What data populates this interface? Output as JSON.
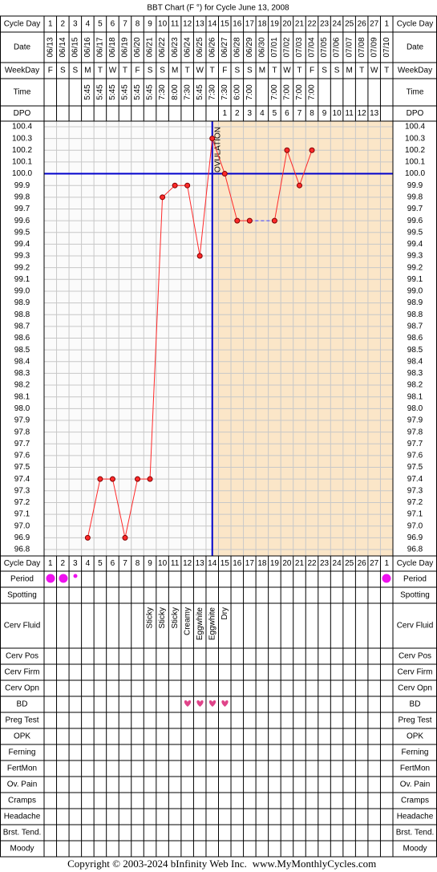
{
  "title": "BBT Chart (F °) for Cycle June 13, 2008",
  "header_labels": {
    "cycle_day": "Cycle Day",
    "date": "Date",
    "weekday": "WeekDay",
    "time": "Time",
    "dpo": "DPO"
  },
  "chart_data": {
    "type": "line",
    "categories": [
      1,
      2,
      3,
      4,
      5,
      6,
      7,
      8,
      9,
      10,
      11,
      12,
      13,
      14,
      15,
      16,
      17,
      18,
      19,
      20,
      21,
      22,
      23,
      24,
      25,
      26,
      27,
      1
    ],
    "dates": [
      "06/13",
      "06/14",
      "06/15",
      "06/16",
      "06/17",
      "06/18",
      "06/19",
      "06/20",
      "06/21",
      "06/22",
      "06/23",
      "06/24",
      "06/25",
      "06/26",
      "06/27",
      "06/28",
      "06/29",
      "06/30",
      "07/01",
      "07/02",
      "07/03",
      "07/04",
      "07/05",
      "07/06",
      "07/07",
      "07/08",
      "07/09",
      "07/10"
    ],
    "weekdays": [
      "F",
      "S",
      "S",
      "M",
      "T",
      "W",
      "T",
      "F",
      "S",
      "S",
      "M",
      "T",
      "W",
      "T",
      "F",
      "S",
      "S",
      "M",
      "T",
      "W",
      "T",
      "F",
      "S",
      "S",
      "M",
      "T",
      "W",
      "T"
    ],
    "times": [
      null,
      null,
      null,
      "5:45",
      "5:45",
      "5:45",
      "5:45",
      "5:45",
      "5:45",
      "7:30",
      "8:00",
      "7:30",
      "5:45",
      "7:30",
      "7:30",
      "6:00",
      "7:00",
      null,
      "7:00",
      "7:00",
      "7:00",
      "7:00",
      null,
      null,
      null,
      null,
      null,
      null
    ],
    "dpo": [
      null,
      null,
      null,
      null,
      null,
      null,
      null,
      null,
      null,
      null,
      null,
      null,
      null,
      null,
      1,
      2,
      3,
      4,
      5,
      6,
      7,
      8,
      9,
      10,
      11,
      12,
      13,
      null
    ],
    "values": [
      null,
      null,
      null,
      96.9,
      97.4,
      97.4,
      96.9,
      97.4,
      97.4,
      99.8,
      99.9,
      99.9,
      99.3,
      100.3,
      100.0,
      99.6,
      99.6,
      null,
      99.6,
      100.2,
      99.9,
      100.2,
      null,
      null,
      null,
      null,
      null,
      null
    ],
    "color": "#ff2a2a",
    "ylim": [
      96.8,
      100.4
    ],
    "yticks": [
      96.8,
      96.9,
      {
        "value": 97,
        "label": "97.0"
      },
      97.1,
      97.2,
      97.3,
      97.4,
      97.5,
      97.6,
      97.7,
      97.8,
      97.9,
      {
        "value": 98,
        "label": "98.0"
      },
      98.1,
      98.2,
      98.3,
      98.4,
      98.5,
      98.6,
      98.7,
      98.8,
      98.9,
      {
        "value": 99,
        "label": "99.0"
      },
      99.1,
      99.2,
      99.3,
      99.4,
      99.5,
      99.6,
      99.7,
      99.8,
      99.9,
      {
        "value": 100,
        "label": "100.0"
      },
      100.1,
      100.2,
      100.3,
      100.4
    ],
    "grid": true,
    "coverline": 100.0,
    "ovulation_day": 14,
    "ovulation_label": "OVULATION"
  },
  "fertility_rows": {
    "labels": [
      "Period",
      "Spotting",
      "Cerv Fluid",
      "Cerv Pos",
      "Cerv Firm",
      "Cerv Opn",
      "BD",
      "Preg Test",
      "OPK",
      "Ferning",
      "FertMon",
      "Ov. Pain",
      "Cramps",
      "Headache",
      "Brst. Tend.",
      "Moody"
    ],
    "cerv_fluid": [
      null,
      null,
      null,
      null,
      null,
      null,
      null,
      null,
      "Sticky",
      "Sticky",
      "Sticky",
      "Creamy",
      "Eggwhite",
      "Eggwhite",
      "Dry",
      null,
      null,
      null,
      null,
      null,
      null,
      null,
      null,
      null,
      null,
      null,
      null,
      null
    ]
  },
  "footer": {
    "copyright": "Copyright © 2003-2024 bInfinity Web Inc.",
    "site": "www.MyMonthlyCycles.com"
  }
}
